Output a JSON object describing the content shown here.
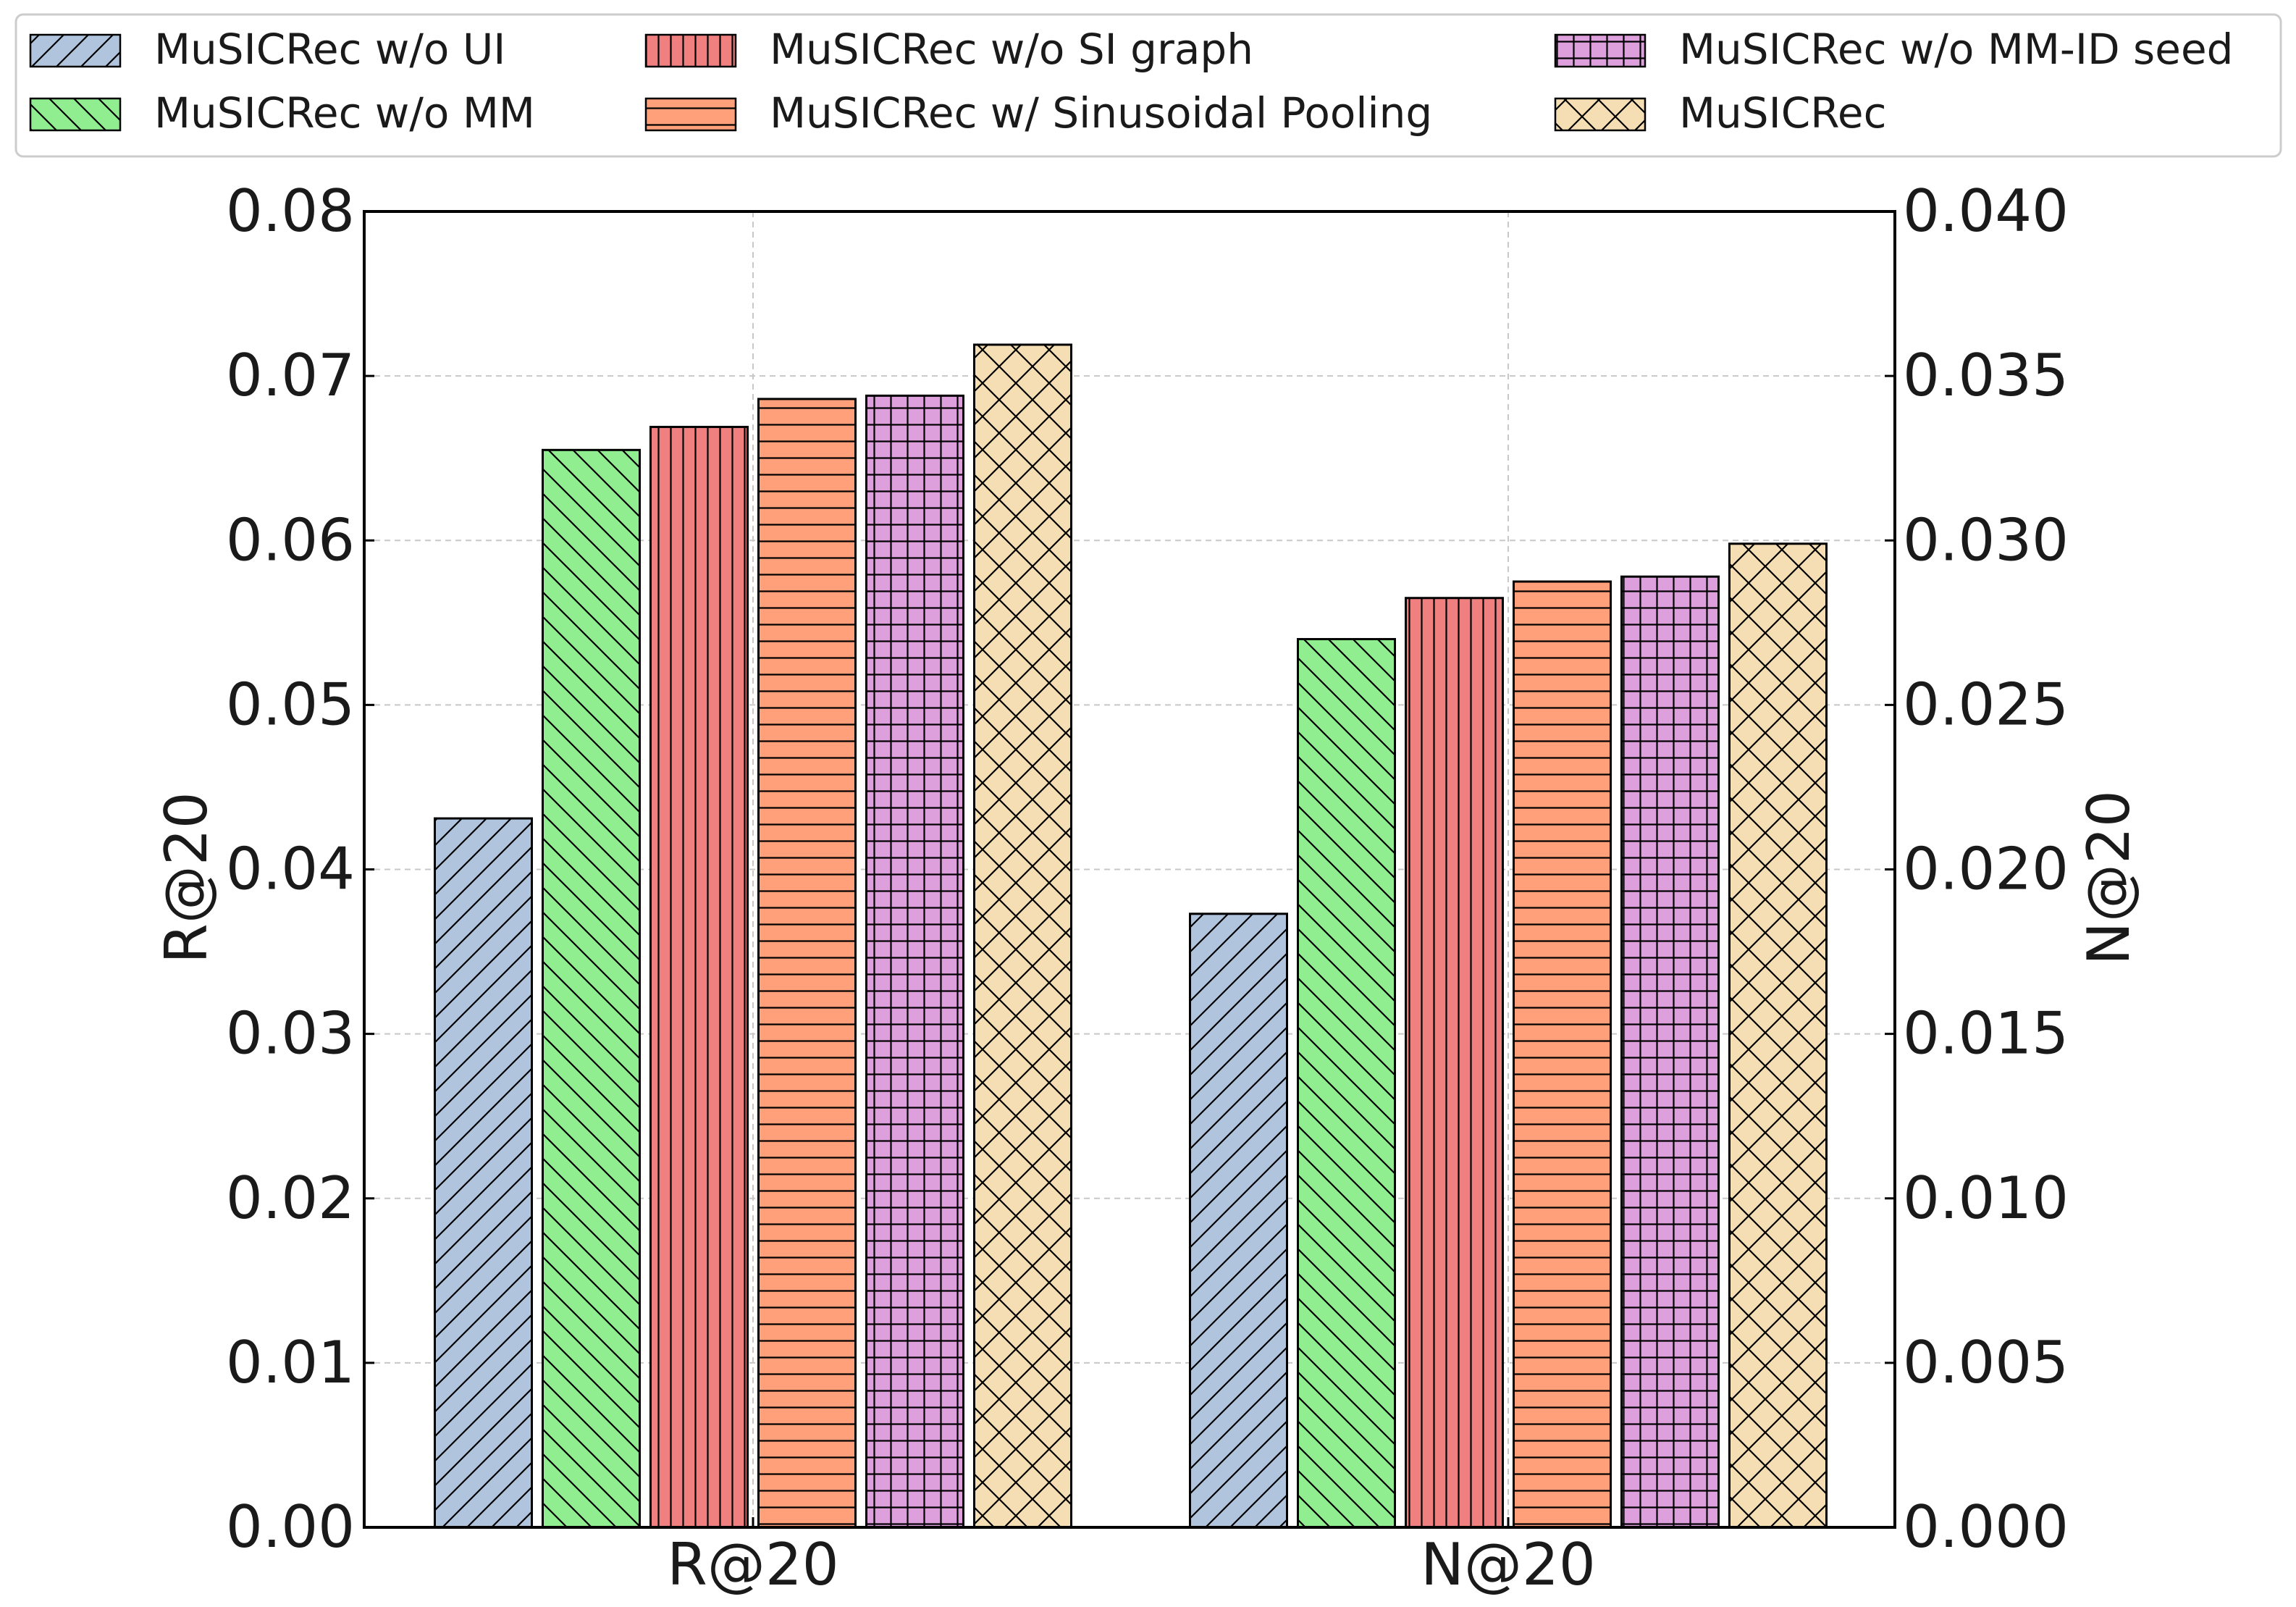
{
  "chart_data": {
    "type": "bar",
    "title": "",
    "categories": [
      "R@20",
      "N@20"
    ],
    "ylabel_left": "R@20",
    "ylabel_right": "N@20",
    "ylim_left": [
      0,
      0.08
    ],
    "ylim_right": [
      0,
      0.04
    ],
    "yticks_left": [
      "0.00",
      "0.01",
      "0.02",
      "0.03",
      "0.04",
      "0.05",
      "0.06",
      "0.07",
      "0.08"
    ],
    "yticks_right": [
      "0.000",
      "0.005",
      "0.010",
      "0.015",
      "0.020",
      "0.025",
      "0.030",
      "0.035",
      "0.040"
    ],
    "grid": true,
    "legend_position": "top",
    "series": [
      {
        "name": "MuSICRec w/o UI",
        "color": "#b0c4de",
        "hatch": "diag-forward",
        "values": [
          0.0431,
          0.01865
        ]
      },
      {
        "name": "MuSICRec w/o MM",
        "color": "#90ee90",
        "hatch": "diag-back",
        "values": [
          0.0655,
          0.027
        ]
      },
      {
        "name": "MuSICRec w/o SI graph",
        "color": "#f08080",
        "hatch": "vertical",
        "values": [
          0.0669,
          0.02825
        ]
      },
      {
        "name": "MuSICRec w/ Sinusoidal Pooling",
        "color": "#ffa07a",
        "hatch": "horizontal",
        "values": [
          0.0686,
          0.02875
        ]
      },
      {
        "name": "MuSICRec w/o MM-ID seed",
        "color": "#dda0dd",
        "hatch": "grid",
        "values": [
          0.0688,
          0.0289
        ]
      },
      {
        "name": "MuSICRec",
        "color": "#f5deb3",
        "hatch": "cross",
        "values": [
          0.0719,
          0.0299
        ]
      }
    ]
  }
}
